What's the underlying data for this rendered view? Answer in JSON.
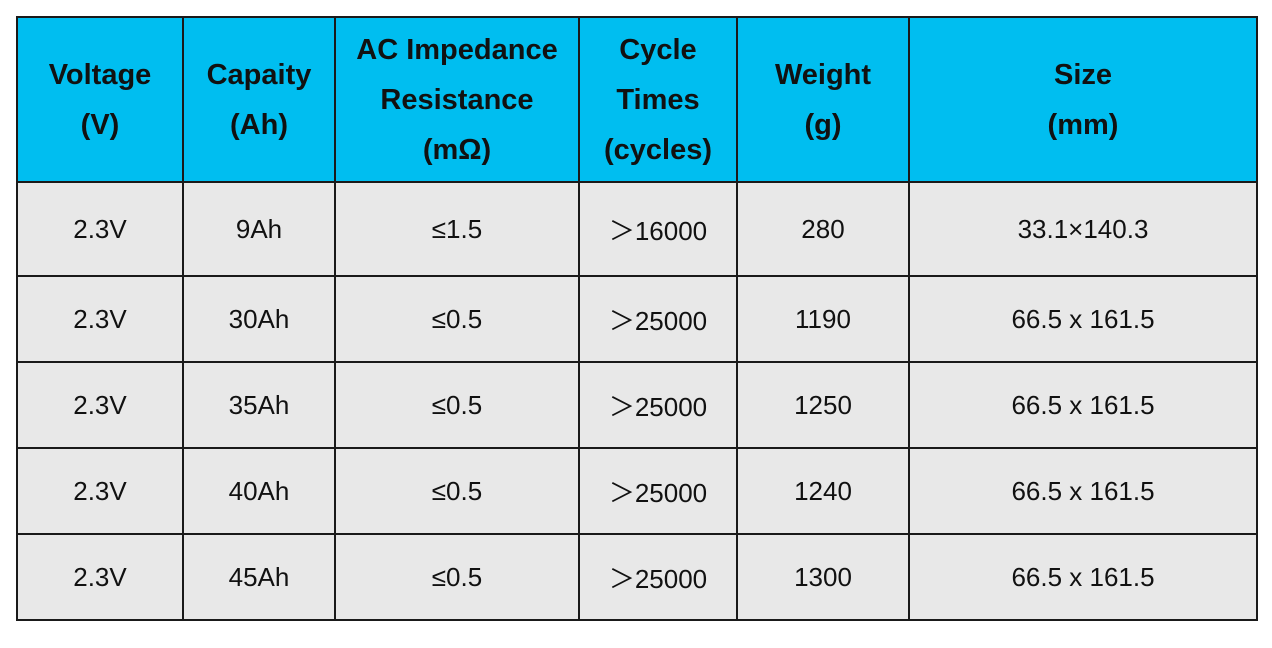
{
  "table": {
    "header": [
      [
        "Voltage",
        "(V)"
      ],
      [
        "Capaity",
        "(Ah)"
      ],
      [
        "AC Impedance",
        "Resistance",
        "(mΩ)"
      ],
      [
        "Cycle",
        "Times",
        "(cycles)"
      ],
      [
        "Weight",
        "(g)"
      ],
      [
        "Size",
        "(mm)"
      ]
    ],
    "rows": [
      [
        "2.3V",
        "9Ah",
        "≤1.5",
        "＞16000",
        "280",
        "33.1×140.3"
      ],
      [
        "2.3V",
        "30Ah",
        "≤0.5",
        "＞25000",
        "1190",
        "66.5 x 161.5"
      ],
      [
        "2.3V",
        "35Ah",
        "≤0.5",
        "＞25000",
        "1250",
        "66.5 x 161.5"
      ],
      [
        "2.3V",
        "40Ah",
        "≤0.5",
        "＞25000",
        "1240",
        "66.5 x 161.5"
      ],
      [
        "2.3V",
        "45Ah",
        "≤0.5",
        "＞25000",
        "1300",
        "66.5 x 161.5"
      ]
    ]
  }
}
